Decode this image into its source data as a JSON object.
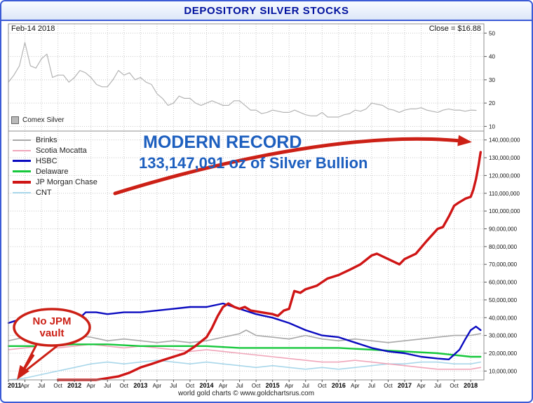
{
  "window": {
    "title": "DEPOSITORY SILVER STOCKS"
  },
  "price_panel": {
    "date_label": "Feb-14 2018",
    "close_label": "Close = $16.88"
  },
  "annotations": {
    "record_title": "MODERN RECORD",
    "record_value": "133,147,091 oz of Silver Bullion",
    "bubble_line1": "No JPM",
    "bubble_line2": "vault"
  },
  "footer": {
    "text": "world gold charts © www.goldchartsrus.com"
  },
  "colors": {
    "border_blue": "#3b5bd6",
    "title_blue": "#00119e",
    "annotation_blue": "#1d5fbf",
    "annotation_red": "#cc2016"
  },
  "x_axis": {
    "labels": [
      "2011",
      "Apr",
      "Jul",
      "Oct",
      "2012",
      "Apr",
      "Jul",
      "Oct",
      "2013",
      "Apr",
      "Jul",
      "Oct",
      "2014",
      "Apr",
      "Jul",
      "Oct",
      "2015",
      "Apr",
      "Jul",
      "Oct",
      "2016",
      "Apr",
      "Jul",
      "Oct",
      "2017",
      "Apr",
      "Jul",
      "Oct",
      "2018"
    ]
  },
  "chart_data": [
    {
      "type": "line",
      "title": "Comex Silver",
      "panel": "price",
      "xlim": [
        2011.0,
        2018.2
      ],
      "ylim": [
        8,
        54
      ],
      "yticks": [
        10,
        20,
        30,
        40,
        50
      ],
      "series": [
        {
          "name": "Comex Silver",
          "color": "#b4b4b4",
          "width": 1.2,
          "z": 1,
          "start": 2011.0,
          "step": 0.0833333,
          "values": [
            29,
            32,
            36,
            46,
            36,
            35,
            39,
            41,
            31,
            32,
            32,
            29,
            31,
            34,
            33,
            31,
            28,
            27,
            27,
            30,
            34,
            32,
            33,
            30,
            31,
            29,
            28,
            24,
            22,
            19,
            20,
            23,
            22,
            22,
            20,
            19,
            20,
            21,
            20,
            19,
            19,
            21,
            21,
            19,
            17,
            17,
            15.5,
            16,
            17,
            16.5,
            16,
            16,
            17,
            16,
            15,
            14.5,
            14.5,
            16,
            14,
            14,
            14,
            15,
            15.5,
            17,
            16.5,
            17.5,
            20,
            19.5,
            19,
            17.5,
            17,
            16,
            17,
            17.5,
            17.5,
            18,
            17,
            16.5,
            16,
            17,
            17.5,
            17,
            17,
            16.5,
            17,
            16.88
          ]
        }
      ]
    },
    {
      "type": "line",
      "title": "DEPOSITORY SILVER STOCKS",
      "panel": "stocks",
      "xlim": [
        2011.0,
        2018.2
      ],
      "ylim": [
        5,
        145
      ],
      "unit": 1000000,
      "yticks": [
        10,
        20,
        30,
        40,
        50,
        60,
        70,
        80,
        90,
        100,
        110,
        120,
        130,
        140
      ],
      "series": [
        {
          "name": "Brinks",
          "color": "#a8a8a8",
          "width": 1.6,
          "z": 3,
          "points": [
            [
              2011.0,
              27
            ],
            [
              2011.25,
              29
            ],
            [
              2011.5,
              28
            ],
            [
              2011.75,
              26
            ],
            [
              2012.0,
              30
            ],
            [
              2012.25,
              29
            ],
            [
              2012.5,
              27
            ],
            [
              2012.75,
              28
            ],
            [
              2013.0,
              27
            ],
            [
              2013.25,
              26
            ],
            [
              2013.5,
              27
            ],
            [
              2013.75,
              26
            ],
            [
              2014.0,
              27
            ],
            [
              2014.25,
              29
            ],
            [
              2014.5,
              31
            ],
            [
              2014.6,
              33
            ],
            [
              2014.75,
              30
            ],
            [
              2015.0,
              29
            ],
            [
              2015.25,
              28
            ],
            [
              2015.5,
              30
            ],
            [
              2015.75,
              28
            ],
            [
              2016.0,
              27
            ],
            [
              2016.25,
              28
            ],
            [
              2016.5,
              27
            ],
            [
              2016.75,
              26
            ],
            [
              2017.0,
              27
            ],
            [
              2017.25,
              28
            ],
            [
              2017.5,
              29
            ],
            [
              2017.75,
              30
            ],
            [
              2018.0,
              30
            ],
            [
              2018.15,
              31
            ]
          ]
        },
        {
          "name": "Scotia Mocatta",
          "color": "#f0a6ba",
          "width": 1.6,
          "z": 2,
          "points": [
            [
              2011.0,
              22
            ],
            [
              2011.25,
              23
            ],
            [
              2011.5,
              24
            ],
            [
              2011.75,
              23
            ],
            [
              2012.0,
              24
            ],
            [
              2012.25,
              25
            ],
            [
              2012.5,
              24
            ],
            [
              2012.75,
              23
            ],
            [
              2013.0,
              24
            ],
            [
              2013.25,
              23
            ],
            [
              2013.5,
              22
            ],
            [
              2013.75,
              21
            ],
            [
              2014.0,
              22
            ],
            [
              2014.25,
              21
            ],
            [
              2014.5,
              20
            ],
            [
              2014.75,
              19
            ],
            [
              2015.0,
              18
            ],
            [
              2015.25,
              17
            ],
            [
              2015.5,
              16
            ],
            [
              2015.75,
              15
            ],
            [
              2016.0,
              15
            ],
            [
              2016.25,
              16
            ],
            [
              2016.5,
              15
            ],
            [
              2016.75,
              14
            ],
            [
              2017.0,
              13
            ],
            [
              2017.25,
              12
            ],
            [
              2017.5,
              11
            ],
            [
              2017.75,
              11
            ],
            [
              2018.0,
              11
            ],
            [
              2018.15,
              12
            ]
          ]
        },
        {
          "name": "HSBC",
          "color": "#0b0bc0",
          "width": 2.4,
          "z": 5,
          "points": [
            [
              2011.0,
              37
            ],
            [
              2011.17,
              39
            ],
            [
              2011.33,
              36
            ],
            [
              2011.5,
              36
            ],
            [
              2011.75,
              34
            ],
            [
              2012.0,
              37
            ],
            [
              2012.17,
              43
            ],
            [
              2012.33,
              43
            ],
            [
              2012.5,
              42
            ],
            [
              2012.75,
              43
            ],
            [
              2013.0,
              43
            ],
            [
              2013.25,
              44
            ],
            [
              2013.5,
              45
            ],
            [
              2013.75,
              46
            ],
            [
              2014.0,
              46
            ],
            [
              2014.25,
              48
            ],
            [
              2014.5,
              45
            ],
            [
              2014.75,
              42
            ],
            [
              2015.0,
              40
            ],
            [
              2015.25,
              37
            ],
            [
              2015.5,
              33
            ],
            [
              2015.75,
              30
            ],
            [
              2016.0,
              29
            ],
            [
              2016.25,
              26
            ],
            [
              2016.5,
              23
            ],
            [
              2016.75,
              21
            ],
            [
              2017.0,
              20
            ],
            [
              2017.25,
              18
            ],
            [
              2017.5,
              17
            ],
            [
              2017.67,
              16.5
            ],
            [
              2017.83,
              22
            ],
            [
              2017.92,
              28
            ],
            [
              2018.0,
              33
            ],
            [
              2018.08,
              35
            ],
            [
              2018.15,
              33
            ]
          ]
        },
        {
          "name": "Delaware",
          "color": "#16c83c",
          "width": 2.4,
          "z": 4,
          "points": [
            [
              2011.0,
              24
            ],
            [
              2011.5,
              24
            ],
            [
              2012.0,
              25
            ],
            [
              2012.5,
              25
            ],
            [
              2013.0,
              24
            ],
            [
              2013.5,
              24
            ],
            [
              2014.0,
              24
            ],
            [
              2014.5,
              23
            ],
            [
              2015.0,
              23
            ],
            [
              2015.5,
              23
            ],
            [
              2016.0,
              23
            ],
            [
              2016.5,
              22
            ],
            [
              2017.0,
              21
            ],
            [
              2017.5,
              20
            ],
            [
              2017.75,
              19
            ],
            [
              2018.0,
              18
            ],
            [
              2018.15,
              18
            ]
          ]
        },
        {
          "name": "JP Morgan Chase",
          "color": "#cf1515",
          "width": 3.4,
          "z": 6,
          "points": [
            [
              2011.75,
              0.5
            ],
            [
              2012.0,
              1
            ],
            [
              2012.17,
              2
            ],
            [
              2012.33,
              4
            ],
            [
              2012.5,
              6
            ],
            [
              2012.67,
              7
            ],
            [
              2012.83,
              9
            ],
            [
              2013.0,
              12
            ],
            [
              2013.17,
              14
            ],
            [
              2013.33,
              16
            ],
            [
              2013.5,
              18
            ],
            [
              2013.67,
              20
            ],
            [
              2013.83,
              24
            ],
            [
              2014.0,
              29
            ],
            [
              2014.08,
              34
            ],
            [
              2014.17,
              41
            ],
            [
              2014.25,
              46
            ],
            [
              2014.33,
              48
            ],
            [
              2014.42,
              46
            ],
            [
              2014.5,
              45
            ],
            [
              2014.58,
              46
            ],
            [
              2014.67,
              44
            ],
            [
              2014.83,
              43
            ],
            [
              2015.0,
              42
            ],
            [
              2015.08,
              41
            ],
            [
              2015.17,
              44
            ],
            [
              2015.25,
              45
            ],
            [
              2015.33,
              55
            ],
            [
              2015.42,
              54
            ],
            [
              2015.5,
              56
            ],
            [
              2015.67,
              58
            ],
            [
              2015.83,
              62
            ],
            [
              2016.0,
              64
            ],
            [
              2016.17,
              67
            ],
            [
              2016.33,
              70
            ],
            [
              2016.5,
              75
            ],
            [
              2016.58,
              76
            ],
            [
              2016.75,
              73
            ],
            [
              2016.92,
              70
            ],
            [
              2017.0,
              73
            ],
            [
              2017.17,
              76
            ],
            [
              2017.33,
              83
            ],
            [
              2017.5,
              90
            ],
            [
              2017.58,
              91
            ],
            [
              2017.67,
              97
            ],
            [
              2017.75,
              103
            ],
            [
              2017.83,
              105
            ],
            [
              2017.92,
              107
            ],
            [
              2018.0,
              108
            ],
            [
              2018.04,
              112
            ],
            [
              2018.08,
              118
            ],
            [
              2018.12,
              126
            ],
            [
              2018.15,
              133.147091
            ]
          ]
        },
        {
          "name": "CNT",
          "color": "#a9d7ea",
          "width": 1.6,
          "z": 1,
          "points": [
            [
              2011.0,
              5
            ],
            [
              2011.25,
              6
            ],
            [
              2011.5,
              8
            ],
            [
              2011.75,
              10
            ],
            [
              2012.0,
              12
            ],
            [
              2012.25,
              14
            ],
            [
              2012.5,
              15
            ],
            [
              2012.75,
              14
            ],
            [
              2013.0,
              15
            ],
            [
              2013.25,
              16
            ],
            [
              2013.5,
              15
            ],
            [
              2013.75,
              14
            ],
            [
              2014.0,
              15
            ],
            [
              2014.25,
              14
            ],
            [
              2014.5,
              13
            ],
            [
              2014.75,
              12
            ],
            [
              2015.0,
              13
            ],
            [
              2015.25,
              12
            ],
            [
              2015.5,
              11
            ],
            [
              2015.75,
              12
            ],
            [
              2016.0,
              11
            ],
            [
              2016.25,
              12
            ],
            [
              2016.5,
              13
            ],
            [
              2016.75,
              14
            ],
            [
              2017.0,
              14
            ],
            [
              2017.25,
              15
            ],
            [
              2017.5,
              15
            ],
            [
              2017.75,
              14
            ],
            [
              2018.0,
              14
            ],
            [
              2018.15,
              15
            ]
          ]
        }
      ]
    }
  ]
}
